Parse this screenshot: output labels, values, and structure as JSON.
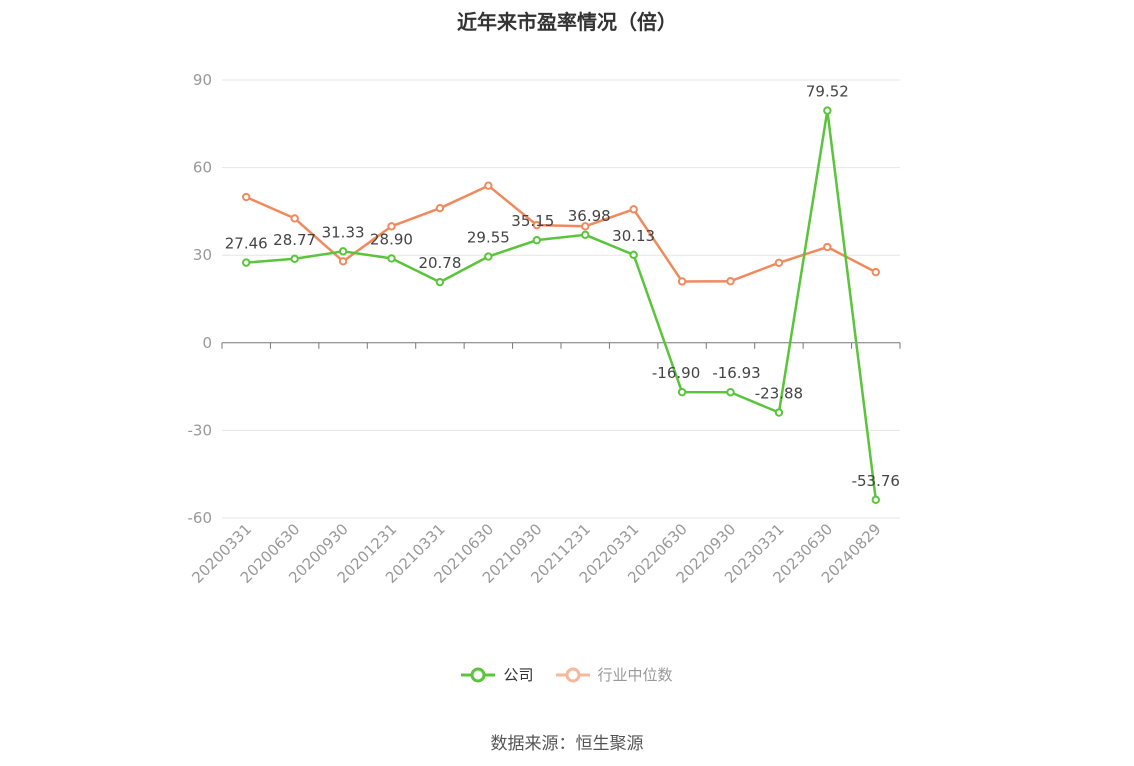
{
  "title": "近年来市盈率情况（倍）",
  "source": "数据来源：恒生聚源",
  "colors": {
    "company": "#5ac43a",
    "industry": "#f08a5d",
    "grid": "#e6e6e6",
    "axis": "#777777"
  },
  "legend": {
    "company": "公司",
    "industry": "行业中位数"
  },
  "chart_data": {
    "type": "line",
    "title": "近年来市盈率情况（倍）",
    "xlabel": "",
    "ylabel": "",
    "ylim": [
      -60,
      90
    ],
    "yticks": [
      90,
      60,
      30,
      0,
      -30,
      -60
    ],
    "grid": true,
    "legend_position": "bottom",
    "categories": [
      "20200331",
      "20200630",
      "20200930",
      "20201231",
      "20210331",
      "20210630",
      "20210930",
      "20211231",
      "20220331",
      "20220630",
      "20220930",
      "20230331",
      "20230630",
      "20240829"
    ],
    "series": [
      {
        "name": "公司",
        "values": [
          27.46,
          28.77,
          31.33,
          28.9,
          20.78,
          29.55,
          35.15,
          36.98,
          30.13,
          -16.9,
          -16.93,
          -23.88,
          79.52,
          -53.76
        ],
        "labels": [
          "27.46",
          "28.77",
          "31.33",
          "28.90",
          "20.78",
          "29.55",
          "35.15",
          "36.98",
          "30.13",
          "-16.90",
          "-16.93",
          "-23.88",
          "79.52",
          "-53.76"
        ]
      },
      {
        "name": "行业中位数",
        "values": [
          49.9,
          42.6,
          27.9,
          39.9,
          46.1,
          53.8,
          40.3,
          39.9,
          45.7,
          21.0,
          21.1,
          27.4,
          32.8,
          24.2
        ]
      }
    ]
  }
}
